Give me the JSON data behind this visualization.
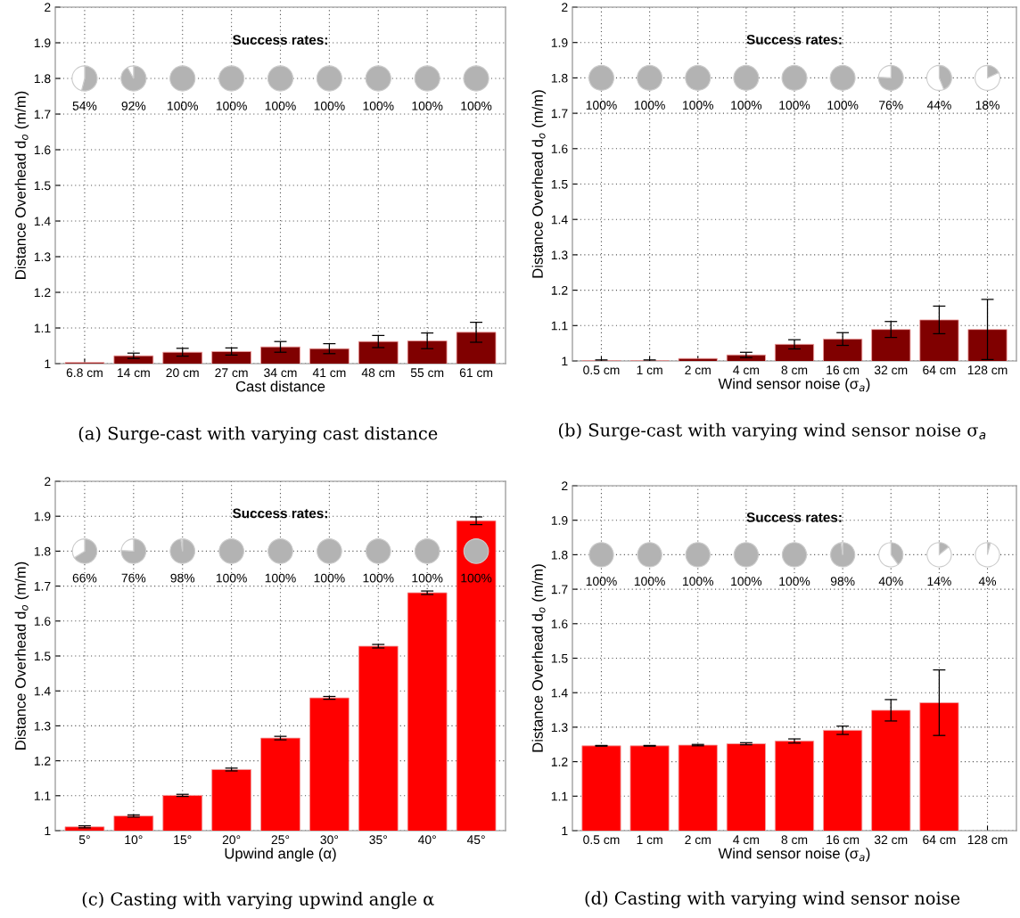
{
  "chart_data": [
    {
      "type": "bar",
      "xlabel": "Cast distance",
      "ylabel": "Distance Overhead d$_{o}$ (m/m)",
      "categories": [
        "6.8 cm",
        "14 cm",
        "20 cm",
        "27 cm",
        "34 cm",
        "41 cm",
        "48 cm",
        "55 cm",
        "61 cm"
      ],
      "values": [
        1.003,
        1.022,
        1.032,
        1.034,
        1.047,
        1.042,
        1.062,
        1.064,
        1.088
      ],
      "errors": [
        null,
        0.0075,
        0.011,
        0.01,
        0.015,
        0.014,
        0.017,
        0.022,
        0.028
      ],
      "color": "#800000",
      "ylim": [
        1,
        2
      ],
      "yticks": [
        1,
        1.1,
        1.2,
        1.3,
        1.4,
        1.5,
        1.6,
        1.7,
        1.8,
        1.9,
        2
      ],
      "grid": true,
      "annotations": [
        "Success rates:",
        "54%",
        "92%",
        "100%",
        "100%",
        "100%",
        "100%",
        "100%",
        "100%",
        "100%",
        "(a) Surge-cast with varying cast distance"
      ]
    },
    {
      "type": "bar",
      "xlabel": "Wind sensor noise (σ$_{a}$)",
      "ylabel": "Distance Overhead d$_{o}$ (m/m)",
      "categories": [
        "0.5 cm",
        "1 cm",
        "2 cm",
        "4 cm",
        "8 cm",
        "16 cm",
        "32 cm",
        "64 cm",
        "128 cm"
      ],
      "values": [
        1.001,
        1.001,
        1.007,
        1.017,
        1.047,
        1.062,
        1.089,
        1.116,
        1.089
      ],
      "errors": [
        0.002,
        0.002,
        null,
        0.0075,
        0.013,
        0.018,
        0.0225,
        0.039,
        0.085
      ],
      "color": "#800000",
      "ylim": [
        1,
        2
      ],
      "yticks": [
        1,
        1.1,
        1.2,
        1.3,
        1.4,
        1.5,
        1.6,
        1.7,
        1.8,
        1.9,
        2
      ],
      "grid": true,
      "annotations": [
        "Success rates:",
        "100%",
        "100%",
        "100%",
        "100%",
        "100%",
        "100%",
        "76%",
        "44%",
        "18%",
        "(b) Surge-cast with varying wind sensor noise σ$_{a}$"
      ]
    },
    {
      "type": "bar",
      "xlabel": "Upwind angle (α)",
      "ylabel": "Distance Overhead d$_{o}$ (m/m)",
      "categories": [
        "5°",
        "10°",
        "15°",
        "20°",
        "25°",
        "30°",
        "35°",
        "40°",
        "45°"
      ],
      "values": [
        1.011,
        1.042,
        1.101,
        1.175,
        1.265,
        1.38,
        1.528,
        1.681,
        1.887
      ],
      "errors": [
        0.003,
        0.003,
        0.003,
        0.004,
        0.005,
        0.004,
        0.005,
        0.005,
        0.011
      ],
      "color": "#ff0000",
      "ylim": [
        1,
        2
      ],
      "yticks": [
        1,
        1.1,
        1.2,
        1.3,
        1.4,
        1.5,
        1.6,
        1.7,
        1.8,
        1.9,
        2
      ],
      "grid": true,
      "annotations": [
        "Success rates:",
        "66%",
        "76%",
        "98%",
        "100%",
        "100%",
        "100%",
        "100%",
        "100%",
        "100%",
        "(c) Casting with varying upwind angle α"
      ]
    },
    {
      "type": "bar",
      "xlabel": "Wind sensor noise (σ$_{a}$)",
      "ylabel": "Distance Overhead d$_{o}$ (m/m)",
      "categories": [
        "0.5 cm",
        "1 cm",
        "2 cm",
        "4 cm",
        "8 cm",
        "16 cm",
        "32 cm",
        "64 cm",
        "128 cm"
      ],
      "values": [
        1.246,
        1.246,
        1.248,
        1.252,
        1.26,
        1.291,
        1.349,
        1.371,
        null
      ],
      "errors": [
        0.001,
        0.001,
        0.002,
        0.003,
        0.006,
        0.012,
        0.031,
        0.095,
        null
      ],
      "color": "#ff0000",
      "ylim": [
        1,
        2
      ],
      "yticks": [
        1,
        1.1,
        1.2,
        1.3,
        1.4,
        1.5,
        1.6,
        1.7,
        1.8,
        1.9,
        2
      ],
      "grid": true,
      "annotations": [
        "Success rates:",
        "100%",
        "100%",
        "100%",
        "100%",
        "100%",
        "98%",
        "40%",
        "14%",
        "4%",
        "(d) Casting with varying wind sensor noise"
      ]
    }
  ]
}
